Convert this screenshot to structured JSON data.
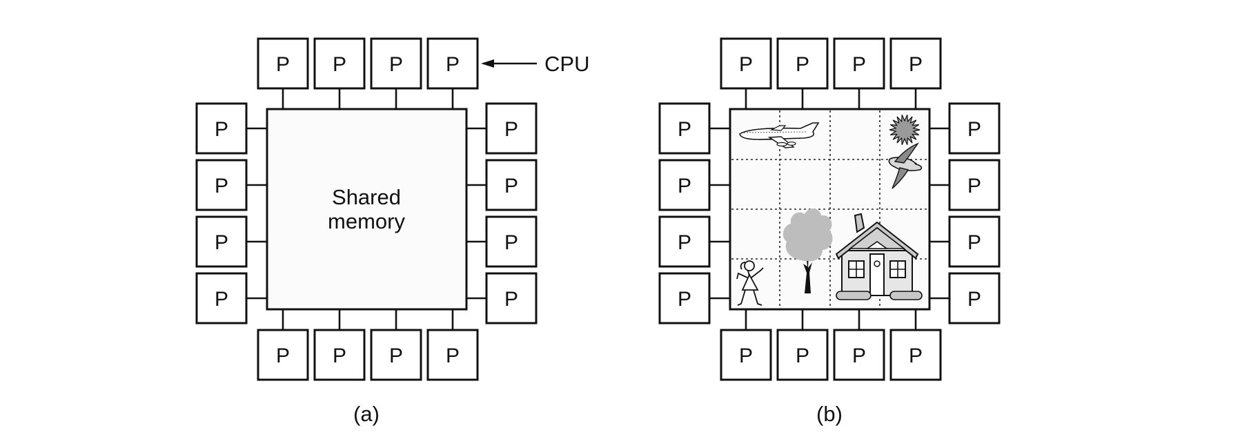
{
  "processor_label": "P",
  "figure_a": {
    "memory_label_line1": "Shared",
    "memory_label_line2": "memory",
    "cpu_callout": "CPU",
    "caption": "(a)"
  },
  "figure_b": {
    "caption": "(b)",
    "picture_objects": [
      "airplane-icon",
      "sun-icon",
      "bird-icon",
      "tree-icon",
      "house-icon",
      "girl-icon"
    ]
  },
  "colors": {
    "stroke": "#111111",
    "picture_gray": "#bdbdbd",
    "background": "#ffffff"
  }
}
